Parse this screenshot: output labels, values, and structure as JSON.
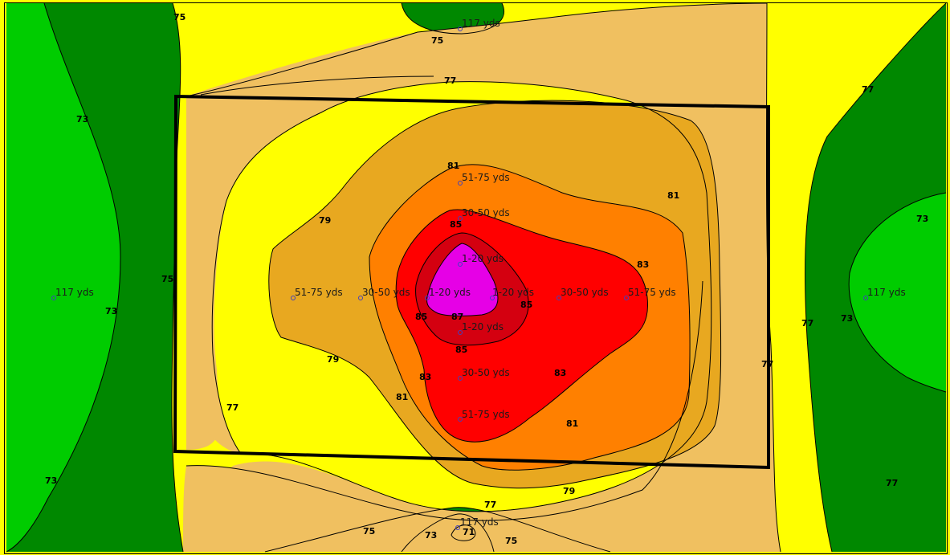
{
  "colors": {
    "band_73": "#008800",
    "band_75": "#00cc00",
    "band_77": "#ffff00",
    "band_79": "#f0c060",
    "band_81": "#e8a820",
    "band_83": "#ff8000",
    "band_85": "#ff0000",
    "band_87": "#d40010",
    "band_peak": "#e600e6",
    "outline": "#000000",
    "marker": "#4040c0"
  },
  "contour_labels": {
    "c75_top_left": "75",
    "c75_top_mid": "75",
    "c77_top": "77",
    "c73_left": "73",
    "c81_center_top": "81",
    "c81_right": "81",
    "c79_left_top": "79",
    "c85_upper": "85",
    "c83_right": "83",
    "c75_left": "75",
    "c73_left_mid": "73",
    "c85_left": "85",
    "c87": "87",
    "c85_right": "85",
    "c85_lower": "85",
    "c79_left_bottom": "79",
    "c83_lower_left": "83",
    "c83_lower_right": "83",
    "c81_lower_left": "81",
    "c77_left": "77",
    "c81_lower_right": "81",
    "c77_right_top": "77",
    "c73_right_top": "73",
    "c77_right_mid": "77",
    "c73_right_mid": "73",
    "c77_right_inner": "77",
    "c73_bottom_left": "73",
    "c79_bottom": "79",
    "c77_bottom": "77",
    "c77_bottom_right": "77",
    "c75_bottom_left": "75",
    "c73_bottom_mid": "73",
    "c71_bottom": "71",
    "c75_bottom_right": "75"
  },
  "sample_points": {
    "top_far": "117 yds",
    "north_51_75": "51-75 yds",
    "north_30_50": "30-50 yds",
    "north_1_20": "1-20 yds",
    "west_far": "117 yds",
    "west_51_75": "51-75 yds",
    "west_30_50": "30-50 yds",
    "west_1_20": "1-20 yds",
    "east_1_20": "1-20 yds",
    "east_30_50": "30-50 yds",
    "east_51_75": "51-75 yds",
    "east_far": "117 yds",
    "south_1_20": "1-20 yds",
    "south_30_50": "30-50 yds",
    "south_51_75": "51-75 yds",
    "bottom_far": "117 yds"
  }
}
